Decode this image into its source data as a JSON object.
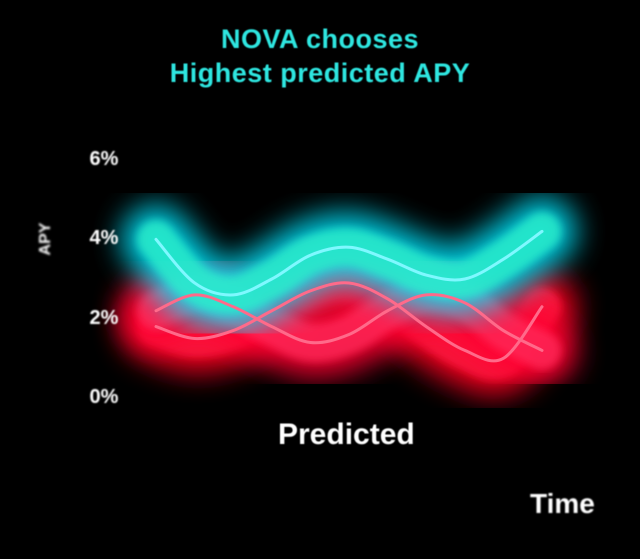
{
  "chart_data": {
    "type": "line",
    "title": "NOVA chooses",
    "subtitle": "Highest predicted APY",
    "xlabel": "Time",
    "ylabel": "APY",
    "annotation": "Predicted",
    "y_ticks": [
      "6%",
      "4%",
      "2%",
      "0%"
    ],
    "ylim": [
      0,
      6
    ],
    "xlim": [
      0,
      1
    ],
    "grid": true,
    "series": [
      {
        "color": "#2ef0c8",
        "glow": "#00e6ff",
        "x": [
          0.0,
          0.1,
          0.2,
          0.3,
          0.4,
          0.5,
          0.6,
          0.7,
          0.8,
          0.9,
          1.0
        ],
        "y": [
          4.0,
          2.9,
          2.6,
          3.0,
          3.6,
          3.8,
          3.5,
          3.1,
          3.0,
          3.5,
          4.2
        ]
      },
      {
        "color": "#ff1a44",
        "glow": "#ff0022",
        "x": [
          0.0,
          0.1,
          0.2,
          0.3,
          0.4,
          0.5,
          0.6,
          0.7,
          0.8,
          0.9,
          1.0
        ],
        "y": [
          1.8,
          1.5,
          1.7,
          2.2,
          2.7,
          2.9,
          2.5,
          1.8,
          1.2,
          1.0,
          2.3
        ]
      },
      {
        "color": "#ff2a5a",
        "glow": "#ff0033",
        "x": [
          0.0,
          0.1,
          0.2,
          0.3,
          0.4,
          0.5,
          0.6,
          0.7,
          0.8,
          0.9,
          1.0
        ],
        "y": [
          2.2,
          2.6,
          2.3,
          1.8,
          1.4,
          1.6,
          2.2,
          2.6,
          2.4,
          1.7,
          1.2
        ]
      }
    ]
  }
}
